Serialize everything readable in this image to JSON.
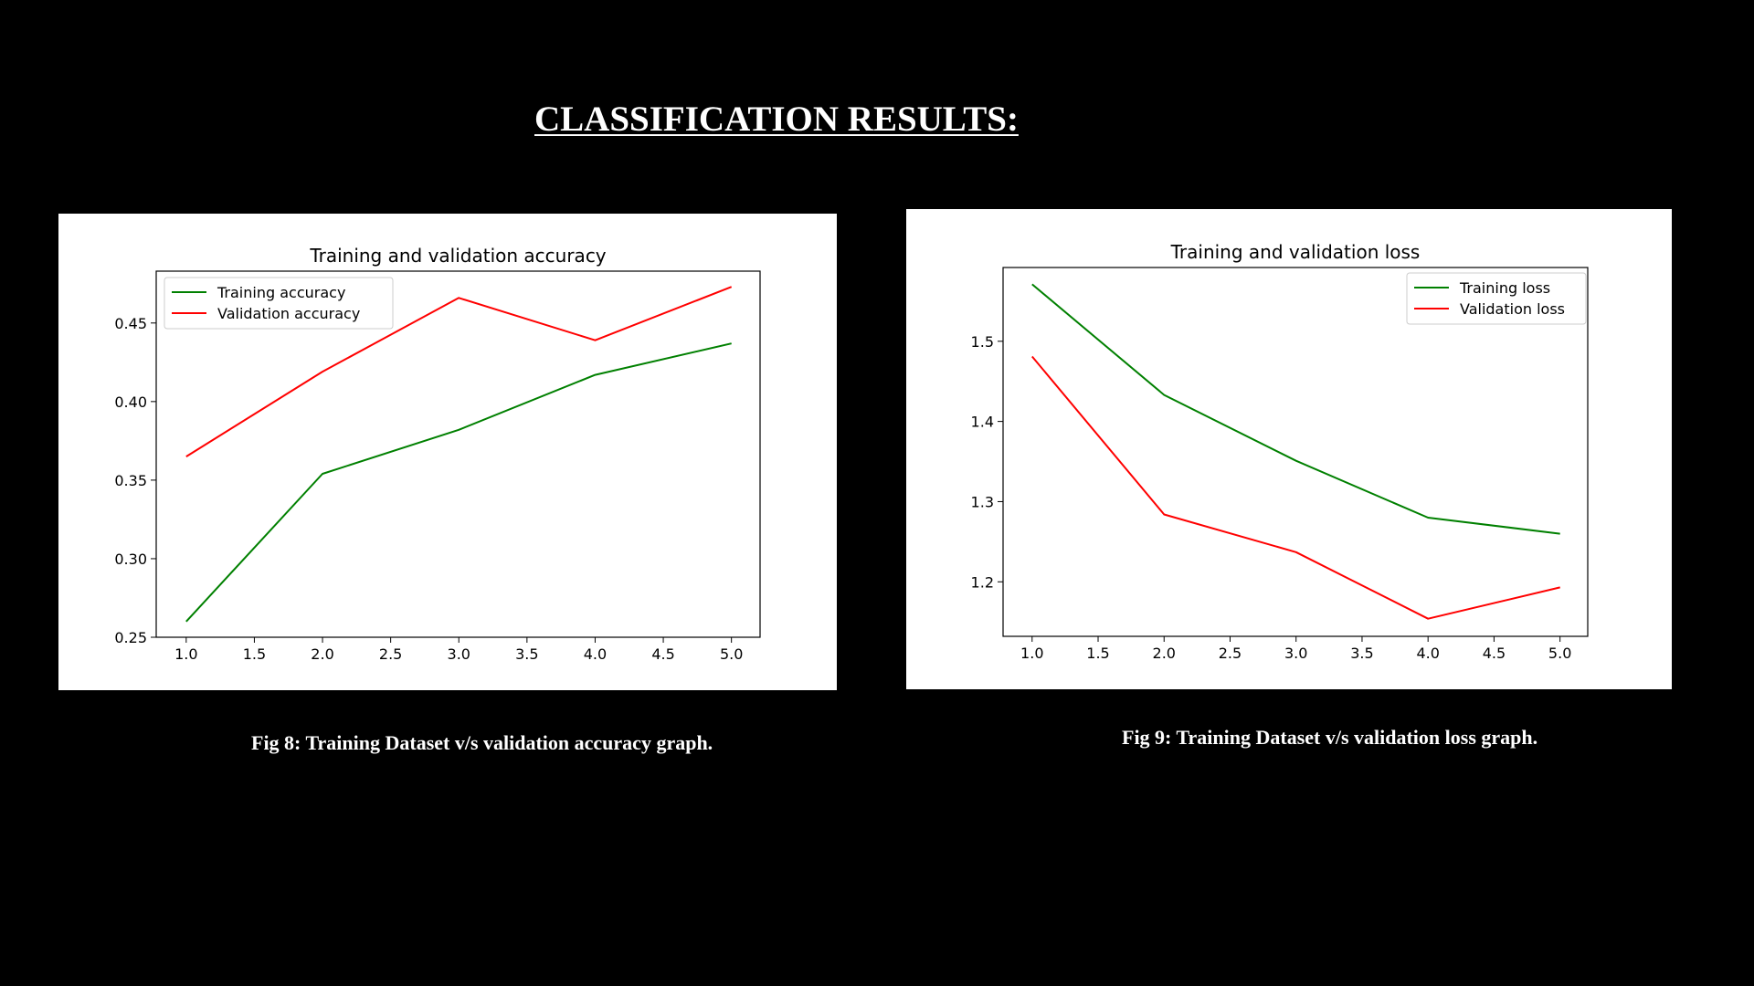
{
  "page": {
    "heading": "CLASSIFICATION RESULTS:",
    "captions": [
      "Fig 8: Training Dataset v/s validation accuracy graph.",
      "Fig 9: Training Dataset v/s validation loss graph."
    ]
  },
  "chart_data": [
    {
      "type": "line",
      "title": "Training and validation accuracy",
      "xlabel": "",
      "ylabel": "",
      "x": [
        1.0,
        2.0,
        3.0,
        4.0,
        5.0
      ],
      "xlim": [
        0.78,
        5.21
      ],
      "ylim": [
        0.25,
        0.483
      ],
      "xticks": [
        "1.0",
        "1.5",
        "2.0",
        "2.5",
        "3.0",
        "3.5",
        "4.0",
        "4.5",
        "5.0"
      ],
      "xtick_values": [
        1.0,
        1.5,
        2.0,
        2.5,
        3.0,
        3.5,
        4.0,
        4.5,
        5.0
      ],
      "yticks": [
        "0.25",
        "0.30",
        "0.35",
        "0.40",
        "0.45"
      ],
      "ytick_values": [
        0.25,
        0.3,
        0.35,
        0.4,
        0.45
      ],
      "grid": false,
      "legend": "upper-left",
      "series": [
        {
          "name": "Training accuracy",
          "color": "#008000",
          "values": [
            0.26,
            0.354,
            0.382,
            0.417,
            0.437
          ]
        },
        {
          "name": "Validation accuracy",
          "color": "#ff0000",
          "values": [
            0.365,
            0.419,
            0.466,
            0.439,
            0.473
          ]
        }
      ]
    },
    {
      "type": "line",
      "title": "Training and validation loss",
      "xlabel": "",
      "ylabel": "",
      "x": [
        1.0,
        2.0,
        3.0,
        4.0,
        5.0
      ],
      "xlim": [
        0.78,
        5.21
      ],
      "ylim": [
        1.132,
        1.592
      ],
      "xticks": [
        "1.0",
        "1.5",
        "2.0",
        "2.5",
        "3.0",
        "3.5",
        "4.0",
        "4.5",
        "5.0"
      ],
      "xtick_values": [
        1.0,
        1.5,
        2.0,
        2.5,
        3.0,
        3.5,
        4.0,
        4.5,
        5.0
      ],
      "yticks": [
        "1.2",
        "1.3",
        "1.4",
        "1.5"
      ],
      "ytick_values": [
        1.2,
        1.3,
        1.4,
        1.5
      ],
      "grid": false,
      "legend": "upper-right",
      "series": [
        {
          "name": "Training loss",
          "color": "#008000",
          "values": [
            1.571,
            1.433,
            1.351,
            1.28,
            1.26
          ]
        },
        {
          "name": "Validation loss",
          "color": "#ff0000",
          "values": [
            1.481,
            1.284,
            1.237,
            1.154,
            1.193
          ]
        }
      ]
    }
  ]
}
